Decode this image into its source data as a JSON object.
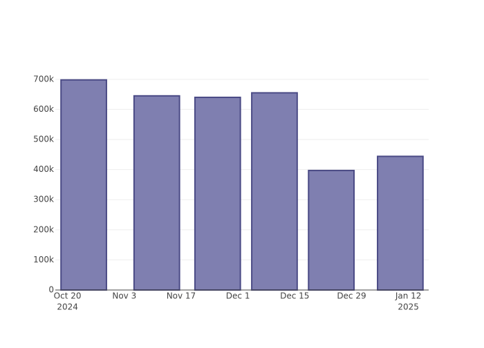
{
  "chart_data": {
    "type": "bar",
    "x": [
      "2024-10-24",
      "2024-11-11",
      "2024-11-26",
      "2024-12-10",
      "2024-12-24",
      "2025-01-10"
    ],
    "values": [
      698000,
      645000,
      640000,
      655000,
      397000,
      444000
    ],
    "color": "#7f7fb0",
    "edge_color": "#4a4a85",
    "xlim": [
      "2024-10-17",
      "2025-01-17"
    ],
    "xticks": [
      {
        "value": "2024-10-20",
        "label": "Oct 20",
        "year": "2024"
      },
      {
        "value": "2024-11-03",
        "label": "Nov 3"
      },
      {
        "value": "2024-11-17",
        "label": "Nov 17"
      },
      {
        "value": "2024-12-01",
        "label": "Dec 1"
      },
      {
        "value": "2024-12-15",
        "label": "Dec 15"
      },
      {
        "value": "2024-12-29",
        "label": "Dec 29"
      },
      {
        "value": "2025-01-12",
        "label": "Jan 12",
        "year": "2025"
      }
    ],
    "ylim": [
      0,
      734000
    ],
    "yticks": [
      0,
      {
        "value": 100000,
        "label": "100k"
      },
      {
        "value": 200000,
        "label": "200k"
      },
      {
        "value": 300000,
        "label": "300k"
      },
      {
        "value": 400000,
        "label": "400k"
      },
      {
        "value": 500000,
        "label": "500k"
      },
      {
        "value": 600000,
        "label": "600k"
      },
      {
        "value": 700000,
        "label": "700k"
      }
    ],
    "grid": true
  }
}
